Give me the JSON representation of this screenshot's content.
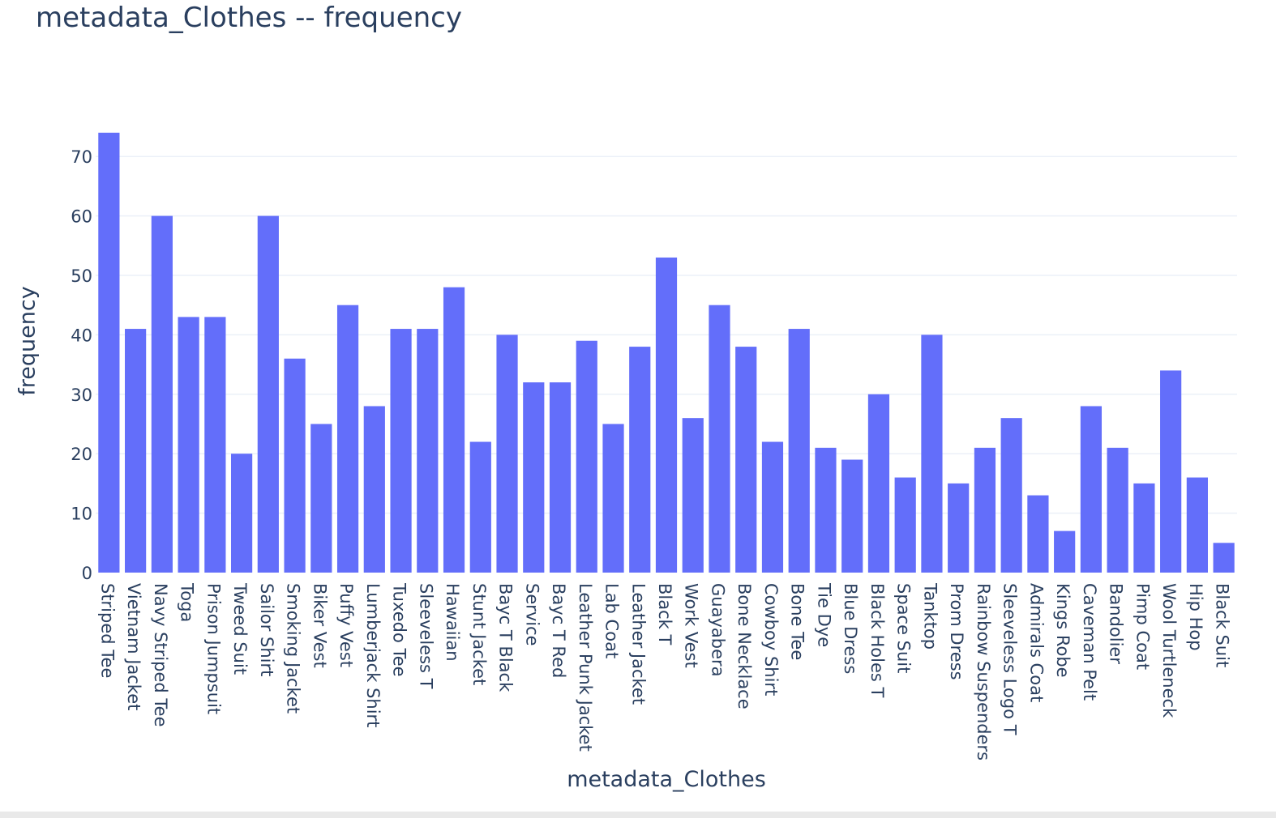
{
  "chart_data": {
    "type": "bar",
    "title": "metadata_Clothes -- frequency",
    "xlabel": "metadata_Clothes",
    "ylabel": "frequency",
    "ylim": [
      0,
      74
    ],
    "yticks": [
      0,
      10,
      20,
      30,
      40,
      50,
      60,
      70
    ],
    "grid": true,
    "bar_color": "#636efa",
    "categories": [
      "Striped Tee",
      "Vietnam Jacket",
      "Navy Striped Tee",
      "Toga",
      "Prison Jumpsuit",
      "Tweed Suit",
      "Sailor Shirt",
      "Smoking Jacket",
      "Biker Vest",
      "Puffy Vest",
      "Lumberjack Shirt",
      "Tuxedo Tee",
      "Sleeveless T",
      "Hawaiian",
      "Stunt Jacket",
      "Bayc T Black",
      "Service",
      "Bayc T Red",
      "Leather Punk Jacket",
      "Lab Coat",
      "Leather Jacket",
      "Black T",
      "Work Vest",
      "Guayabera",
      "Bone Necklace",
      "Cowboy Shirt",
      "Bone Tee",
      "Tie Dye",
      "Blue Dress",
      "Black Holes T",
      "Space Suit",
      "Tanktop",
      "Prom Dress",
      "Rainbow Suspenders",
      "Sleeveless Logo T",
      "Admirals Coat",
      "Kings Robe",
      "Caveman Pelt",
      "Bandolier",
      "Pimp Coat",
      "Wool Turtleneck",
      "Hip Hop",
      "Black Suit"
    ],
    "values": [
      74,
      41,
      60,
      43,
      43,
      20,
      60,
      36,
      25,
      45,
      28,
      41,
      41,
      48,
      22,
      40,
      32,
      32,
      39,
      25,
      38,
      53,
      26,
      45,
      38,
      22,
      41,
      21,
      19,
      30,
      16,
      40,
      15,
      21,
      26,
      13,
      7,
      28,
      21,
      15,
      34,
      16,
      5
    ]
  }
}
